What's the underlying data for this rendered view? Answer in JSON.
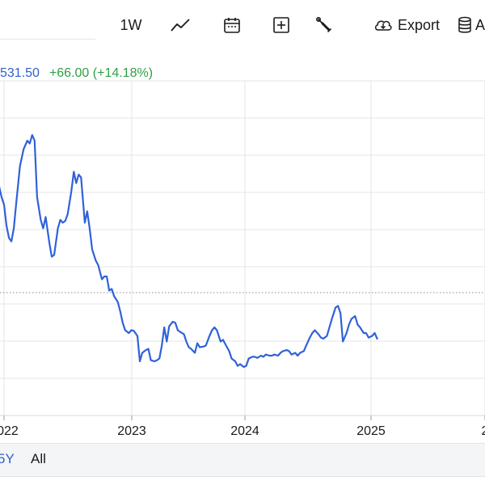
{
  "toolbar": {
    "interval_label": "1W",
    "line_icon": "line-chart-icon",
    "calendar_icon": "calendar-icon",
    "compare_icon": "plus-square-icon",
    "settings_icon": "wrench-icon",
    "export_icon": "cloud-download-icon",
    "export_label": "Export",
    "data_icon": "database-icon",
    "data_label_partial": "A"
  },
  "price": {
    "value": "531.50",
    "change": "+66.00 (+14.18%)",
    "value_color": "#2f5fd0",
    "change_color": "#2ea043"
  },
  "range_tabs": [
    {
      "label": "5Y",
      "active": true
    },
    {
      "label": "All",
      "active": false
    }
  ],
  "colors": {
    "line": "#2f62d8",
    "grid": "#e6e6e6",
    "reference_line": "#8a8a8a"
  },
  "chart_data": {
    "type": "line",
    "title": "",
    "xlabel": "",
    "ylabel": "",
    "x_tick_labels": [
      "2022",
      "2023",
      "2024",
      "2025",
      "2"
    ],
    "grid": true,
    "reference_line": "dotted horizontal line at previous close",
    "series": [
      {
        "points": [
          [
            2021.93,
            4.36
          ],
          [
            2021.95,
            3.89
          ],
          [
            2021.98,
            3.6
          ],
          [
            2022.0,
            3.47
          ],
          [
            2022.02,
            3.1
          ],
          [
            2022.04,
            2.88
          ],
          [
            2022.06,
            2.82
          ],
          [
            2022.08,
            3.05
          ],
          [
            2022.1,
            3.5
          ],
          [
            2022.13,
            4.15
          ],
          [
            2022.16,
            4.45
          ],
          [
            2022.19,
            4.6
          ],
          [
            2022.21,
            4.55
          ],
          [
            2022.23,
            4.7
          ],
          [
            2022.25,
            4.6
          ],
          [
            2022.27,
            3.6
          ],
          [
            2022.3,
            3.2
          ],
          [
            2022.32,
            3.05
          ],
          [
            2022.34,
            3.25
          ],
          [
            2022.37,
            2.8
          ],
          [
            2022.39,
            2.55
          ],
          [
            2022.41,
            2.58
          ],
          [
            2022.44,
            3.05
          ],
          [
            2022.46,
            3.2
          ],
          [
            2022.48,
            3.15
          ],
          [
            2022.5,
            3.18
          ],
          [
            2022.52,
            3.3
          ],
          [
            2022.55,
            3.7
          ],
          [
            2022.57,
            4.05
          ],
          [
            2022.59,
            3.85
          ],
          [
            2022.61,
            4.0
          ],
          [
            2022.63,
            3.95
          ],
          [
            2022.66,
            3.15
          ],
          [
            2022.68,
            3.35
          ],
          [
            2022.7,
            3.05
          ],
          [
            2022.72,
            2.68
          ],
          [
            2022.75,
            2.48
          ],
          [
            2022.77,
            2.4
          ],
          [
            2022.8,
            2.15
          ],
          [
            2022.82,
            2.2
          ],
          [
            2022.84,
            2.2
          ],
          [
            2022.86,
            1.95
          ],
          [
            2022.88,
            1.98
          ],
          [
            2022.9,
            1.85
          ],
          [
            2022.93,
            1.75
          ],
          [
            2022.95,
            1.58
          ],
          [
            2022.97,
            1.38
          ],
          [
            2022.99,
            1.25
          ],
          [
            2023.02,
            1.2
          ],
          [
            2023.04,
            1.25
          ],
          [
            2023.06,
            1.24
          ],
          [
            2023.09,
            1.15
          ],
          [
            2023.11,
            0.7
          ],
          [
            2023.13,
            0.85
          ],
          [
            2023.16,
            0.9
          ],
          [
            2023.18,
            0.92
          ],
          [
            2023.2,
            0.72
          ],
          [
            2023.23,
            0.7
          ],
          [
            2023.25,
            0.72
          ],
          [
            2023.27,
            0.75
          ],
          [
            2023.29,
            0.98
          ],
          [
            2023.31,
            1.3
          ],
          [
            2023.33,
            1.05
          ],
          [
            2023.35,
            1.32
          ],
          [
            2023.38,
            1.4
          ],
          [
            2023.4,
            1.38
          ],
          [
            2023.42,
            1.25
          ],
          [
            2023.44,
            1.22
          ],
          [
            2023.47,
            1.18
          ],
          [
            2023.49,
            1.05
          ],
          [
            2023.51,
            0.95
          ],
          [
            2023.53,
            0.92
          ],
          [
            2023.56,
            0.85
          ],
          [
            2023.58,
            1.02
          ],
          [
            2023.6,
            0.95
          ],
          [
            2023.63,
            0.96
          ],
          [
            2023.65,
            0.98
          ],
          [
            2023.68,
            1.15
          ],
          [
            2023.7,
            1.25
          ],
          [
            2023.72,
            1.3
          ],
          [
            2023.74,
            1.25
          ],
          [
            2023.77,
            1.05
          ],
          [
            2023.79,
            1.08
          ],
          [
            2023.81,
            1.0
          ],
          [
            2023.84,
            0.88
          ],
          [
            2023.86,
            0.75
          ],
          [
            2023.89,
            0.7
          ],
          [
            2023.91,
            0.62
          ],
          [
            2023.93,
            0.65
          ],
          [
            2023.96,
            0.6
          ],
          [
            2023.98,
            0.62
          ],
          [
            2024.0,
            0.75
          ],
          [
            2024.03,
            0.78
          ],
          [
            2024.05,
            0.78
          ],
          [
            2024.07,
            0.76
          ],
          [
            2024.1,
            0.8
          ],
          [
            2024.12,
            0.78
          ],
          [
            2024.14,
            0.82
          ],
          [
            2024.17,
            0.8
          ],
          [
            2024.19,
            0.8
          ],
          [
            2024.21,
            0.82
          ],
          [
            2024.24,
            0.8
          ],
          [
            2024.26,
            0.85
          ],
          [
            2024.28,
            0.88
          ],
          [
            2024.31,
            0.9
          ],
          [
            2024.33,
            0.88
          ],
          [
            2024.35,
            0.82
          ],
          [
            2024.38,
            0.85
          ],
          [
            2024.4,
            0.8
          ],
          [
            2024.42,
            0.85
          ],
          [
            2024.45,
            0.88
          ],
          [
            2024.47,
            0.98
          ],
          [
            2024.5,
            1.12
          ],
          [
            2024.52,
            1.2
          ],
          [
            2024.54,
            1.25
          ],
          [
            2024.57,
            1.18
          ],
          [
            2024.59,
            1.12
          ],
          [
            2024.61,
            1.1
          ],
          [
            2024.64,
            1.15
          ],
          [
            2024.66,
            1.3
          ],
          [
            2024.68,
            1.45
          ],
          [
            2024.71,
            1.65
          ],
          [
            2024.73,
            1.68
          ],
          [
            2024.75,
            1.55
          ],
          [
            2024.77,
            1.05
          ],
          [
            2024.8,
            1.2
          ],
          [
            2024.82,
            1.35
          ],
          [
            2024.84,
            1.45
          ],
          [
            2024.87,
            1.5
          ],
          [
            2024.89,
            1.35
          ],
          [
            2024.91,
            1.3
          ],
          [
            2024.94,
            1.2
          ],
          [
            2024.96,
            1.2
          ],
          [
            2024.98,
            1.12
          ],
          [
            2025.01,
            1.15
          ],
          [
            2025.03,
            1.2
          ],
          [
            2025.05,
            1.1
          ]
        ]
      }
    ]
  }
}
